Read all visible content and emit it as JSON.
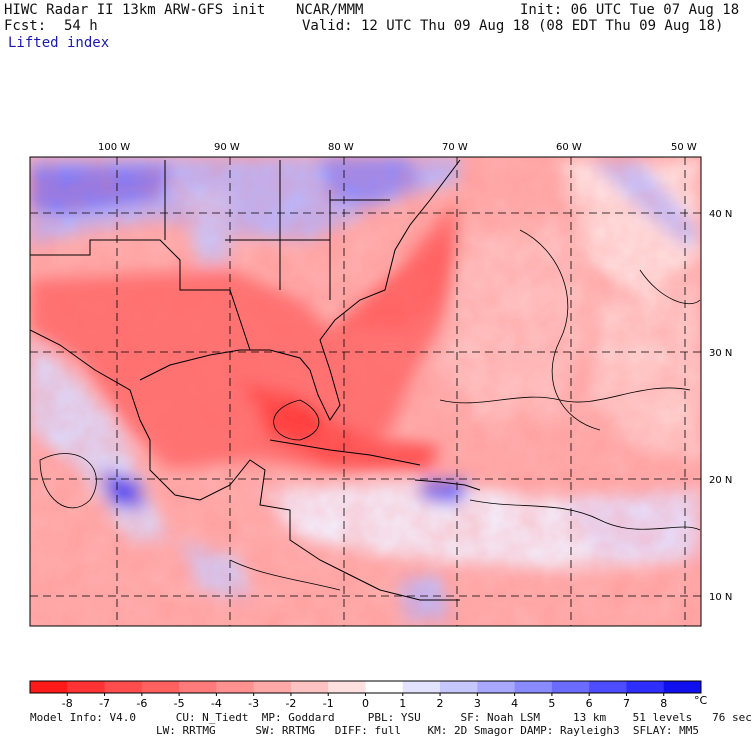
{
  "header": {
    "title": "HIWC Radar II 13km ARW-GFS init",
    "org": "NCAR/MMM",
    "init": "Init: 06 UTC Tue 07 Aug 18",
    "fcst_label": "Fcst:",
    "fcst_value": "54 h",
    "valid": "Valid: 12 UTC Thu 09 Aug 18 (08 EDT Thu 09 Aug 18)",
    "field": "Lifted index"
  },
  "axes": {
    "lon_labels": [
      "100 W",
      "90 W",
      "80 W",
      "70 W",
      "60 W",
      "50 W"
    ],
    "lat_labels": [
      "40 N",
      "30 N",
      "20 N",
      "10 N"
    ]
  },
  "colorbar": {
    "ticks": [
      "-8",
      "-7",
      "-6",
      "-5",
      "-4",
      "-3",
      "-2",
      "-1",
      "0",
      "1",
      "2",
      "3",
      "4",
      "5",
      "6",
      "7",
      "8"
    ],
    "unit": "°C",
    "colors": [
      "#ff1a1a",
      "#ff3333",
      "#ff4d4d",
      "#ff6161",
      "#ff7a7a",
      "#ff9191",
      "#ffa8a8",
      "#ffc2c2",
      "#ffe0e0",
      "#ffffff",
      "#e3e3ff",
      "#c7c7ff",
      "#a8a8ff",
      "#8a8aff",
      "#6b6bff",
      "#4d4dff",
      "#2e2eff",
      "#1010ee"
    ]
  },
  "footer": {
    "line1": "Model Info: V4.0      CU: N_Tiedt  MP: Goddard     PBL: YSU      SF: Noah LSM     13 km    51 levels   76 sec",
    "line2": "LW: RRTMG      SW: RRTMG   DIFF: full    KM: 2D Smagor DAMP: Rayleigh3  SFLAY: MM5"
  }
}
